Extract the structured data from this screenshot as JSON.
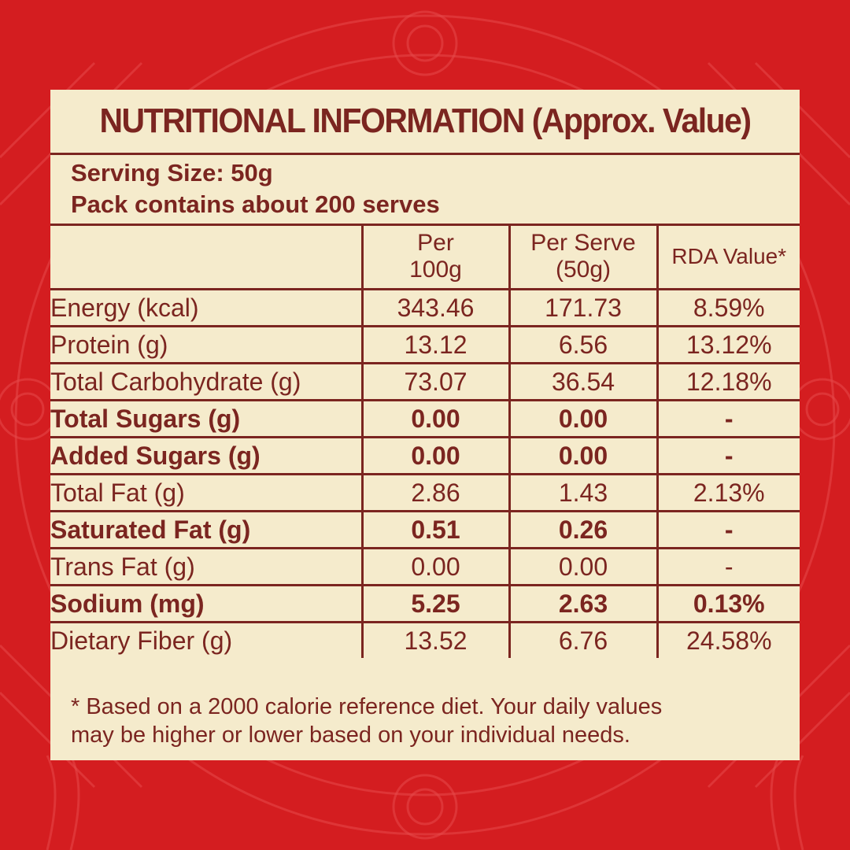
{
  "colors": {
    "background": "#d41d20",
    "panel": "#f5ebcc",
    "text": "#7b2520"
  },
  "label": {
    "title": "NUTRITIONAL INFORMATION (Approx. Value)",
    "serving_size": "Serving Size: 50g",
    "pack_contains": "Pack contains about 200 serves",
    "columns": {
      "per100_line1": "Per",
      "per100_line2": "100g",
      "perserve_line1": "Per Serve",
      "perserve_line2": "(50g)",
      "rda": "RDA Value*"
    },
    "rows": [
      {
        "name": "Energy (kcal)",
        "per100": "343.46",
        "perserve": "171.73",
        "rda": "8.59%",
        "bold": false
      },
      {
        "name": "Protein (g)",
        "per100": "13.12",
        "perserve": "6.56",
        "rda": "13.12%",
        "bold": false
      },
      {
        "name": "Total Carbohydrate (g)",
        "per100": "73.07",
        "perserve": "36.54",
        "rda": "12.18%",
        "bold": false
      },
      {
        "name": "Total Sugars (g)",
        "per100": "0.00",
        "perserve": "0.00",
        "rda": "-",
        "bold": true
      },
      {
        "name": "Added Sugars (g)",
        "per100": "0.00",
        "perserve": "0.00",
        "rda": "-",
        "bold": true
      },
      {
        "name": "Total Fat (g)",
        "per100": "2.86",
        "perserve": "1.43",
        "rda": "2.13%",
        "bold": false
      },
      {
        "name": "Saturated Fat (g)",
        "per100": "0.51",
        "perserve": "0.26",
        "rda": "-",
        "bold": true
      },
      {
        "name": "Trans Fat (g)",
        "per100": "0.00",
        "perserve": "0.00",
        "rda": "-",
        "bold": false
      },
      {
        "name": "Sodium (mg)",
        "per100": "5.25",
        "perserve": "2.63",
        "rda": "0.13%",
        "bold": true
      },
      {
        "name": "Dietary Fiber (g)",
        "per100": "13.52",
        "perserve": "6.76",
        "rda": "24.58%",
        "bold": false
      }
    ],
    "footnote_line1": "* Based on a 2000 calorie reference diet. Your daily values",
    "footnote_line2": "may be higher or lower based on your individual needs."
  }
}
